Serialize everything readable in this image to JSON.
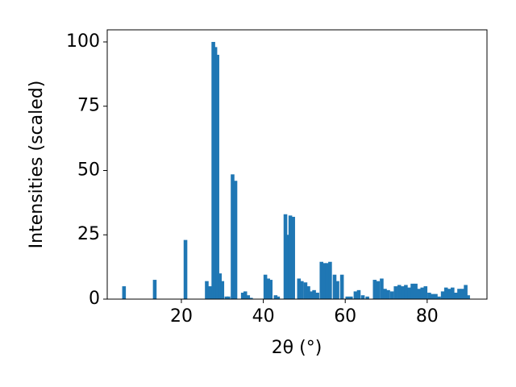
{
  "chart_data": {
    "type": "bar",
    "xlabel": "2θ (°)",
    "ylabel": "Intensities (scaled)",
    "color": "#1f77b4",
    "bar_width": 0.9,
    "xlim": [
      1.9,
      94.6
    ],
    "xticks": [
      20,
      40,
      60,
      80
    ],
    "ylim": [
      0,
      104.7
    ],
    "yticks": [
      0,
      25,
      50,
      75,
      100
    ],
    "x": [
      6.0,
      13.5,
      21.0,
      26.2,
      27.0,
      27.8,
      28.3,
      28.8,
      29.4,
      30.0,
      31.0,
      31.5,
      32.5,
      33.2,
      35.0,
      35.6,
      36.3,
      37.0,
      40.5,
      41.2,
      41.8,
      43.0,
      43.6,
      45.4,
      45.9,
      46.6,
      47.3,
      48.7,
      49.4,
      50.3,
      51.0,
      51.7,
      52.4,
      53.2,
      54.2,
      54.9,
      55.6,
      56.3,
      57.4,
      58.1,
      59.2,
      60.5,
      61.4,
      62.5,
      63.3,
      64.3,
      65.4,
      67.2,
      68.0,
      68.9,
      69.7,
      70.5,
      71.4,
      72.3,
      73.2,
      74.0,
      74.8,
      75.6,
      76.4,
      77.2,
      78.0,
      78.8,
      79.6,
      80.5,
      81.3,
      82.1,
      82.9,
      83.8,
      84.6,
      85.4,
      86.2,
      87.0,
      87.8,
      88.6,
      89.4,
      90.0
    ],
    "values": [
      5,
      7.5,
      23,
      7,
      5,
      100,
      98,
      95,
      10,
      7,
      1,
      1,
      48.5,
      46,
      2.5,
      3,
      1.5,
      0.5,
      9.5,
      8,
      7.5,
      1.5,
      1,
      33,
      25,
      32.5,
      32,
      8,
      7,
      6.5,
      5,
      3,
      3.5,
      2.5,
      14.5,
      14,
      14,
      14.5,
      9.5,
      7,
      9.5,
      1,
      1,
      3,
      3.5,
      1.5,
      1,
      7.5,
      7,
      8,
      4,
      3.5,
      3,
      5,
      5.5,
      5,
      5.5,
      4.5,
      6,
      6,
      4,
      4.5,
      5,
      2.5,
      2,
      2,
      1,
      3,
      4.5,
      4,
      4.5,
      2.5,
      4,
      4,
      5.5,
      1.5
    ]
  }
}
